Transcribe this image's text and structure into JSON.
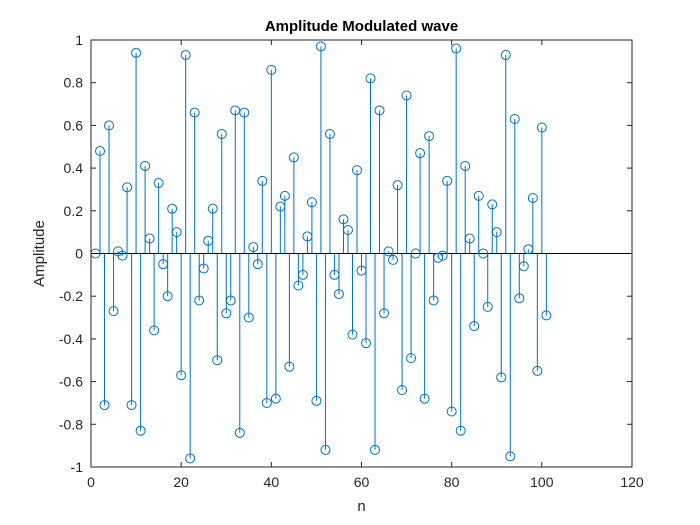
{
  "chart_data": {
    "type": "stem",
    "title": "Amplitude Modulated wave",
    "xlabel": "n",
    "ylabel": "Amplitude",
    "xlim": [
      0,
      120
    ],
    "ylim": [
      -1,
      1
    ],
    "xticks": [
      "0",
      "20",
      "40",
      "60",
      "80",
      "100",
      "120"
    ],
    "yticks": [
      "-1",
      "-0.8",
      "-0.6",
      "-0.4",
      "-0.2",
      "0",
      "0.2",
      "0.4",
      "0.6",
      "0.8",
      "1"
    ],
    "grid": false,
    "marker": "circle",
    "color": "#0072BD",
    "series": [
      {
        "x": [
          1,
          2,
          3,
          4,
          5,
          6,
          7,
          8,
          9,
          10,
          11,
          12,
          13,
          14,
          15,
          16,
          17,
          18,
          19,
          20,
          21,
          22,
          23,
          24,
          25,
          26,
          27,
          28,
          29,
          30,
          31,
          32,
          33,
          34,
          35,
          36,
          37,
          38,
          39,
          40,
          41,
          42,
          43,
          44,
          45,
          46,
          47,
          48,
          49,
          50,
          51,
          52,
          53,
          54,
          55,
          56,
          57,
          58,
          59,
          60,
          61,
          62,
          63,
          64,
          65,
          66,
          67,
          68,
          69,
          70,
          71,
          72,
          73,
          74,
          75,
          76,
          77,
          78,
          79,
          80,
          81,
          82,
          83,
          84,
          85,
          86,
          87,
          88,
          89,
          90,
          91,
          92,
          93,
          94,
          95,
          96,
          97,
          98,
          99,
          100,
          101
        ],
        "y": [
          0,
          0.48,
          -0.71,
          0.6,
          -0.27,
          0.01,
          -0.01,
          0.31,
          -0.71,
          0.94,
          -0.83,
          0.41,
          0.07,
          -0.36,
          0.33,
          -0.05,
          -0.2,
          0.21,
          0.1,
          -0.57,
          0.93,
          -0.96,
          0.66,
          -0.22,
          -0.07,
          0.06,
          0.21,
          -0.5,
          0.56,
          -0.28,
          -0.22,
          0.67,
          -0.84,
          0.66,
          -0.3,
          0.03,
          -0.05,
          0.34,
          -0.7,
          0.86,
          -0.68,
          0.22,
          0.27,
          -0.53,
          0.45,
          -0.15,
          -0.1,
          0.08,
          0.24,
          -0.69,
          0.97,
          -0.92,
          0.56,
          -0.1,
          -0.19,
          0.16,
          0.11,
          -0.38,
          0.39,
          -0.08,
          -0.42,
          0.82,
          -0.92,
          0.67,
          -0.28,
          0.01,
          -0.03,
          0.32,
          -0.64,
          0.74,
          -0.49,
          0,
          0.47,
          -0.68,
          0.55,
          -0.22,
          -0.02,
          -0.01,
          0.34,
          -0.74,
          0.96,
          -0.83,
          0.41,
          0.07,
          -0.34,
          0.27,
          0,
          -0.25,
          0.23,
          0.1,
          -0.58,
          0.93,
          -0.95,
          0.63,
          -0.21,
          -0.06,
          0.02,
          0.26,
          -0.55,
          0.59,
          -0.29
        ]
      }
    ]
  }
}
